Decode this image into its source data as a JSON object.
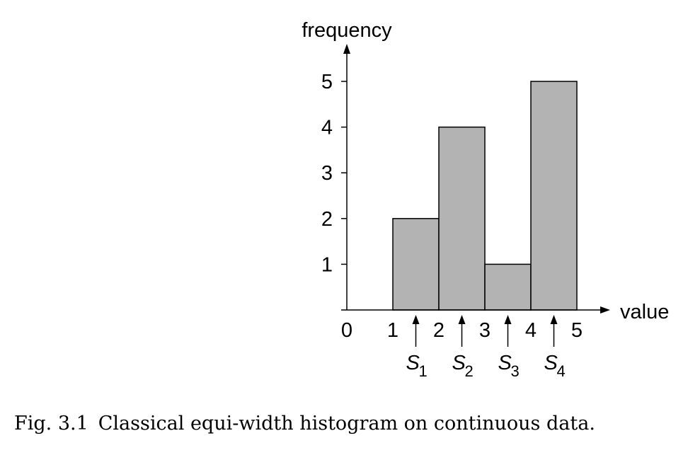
{
  "chart_data": {
    "type": "bar",
    "bins": [
      {
        "x0": 1,
        "x1": 2,
        "value": 2
      },
      {
        "x0": 2,
        "x1": 3,
        "value": 4
      },
      {
        "x0": 3,
        "x1": 4,
        "value": 1
      },
      {
        "x0": 4,
        "x1": 5,
        "value": 5
      }
    ],
    "xlabel": "value",
    "ylabel": "frequency",
    "xticks": [
      "0",
      "1",
      "2",
      "3",
      "4",
      "5"
    ],
    "yticks": [
      "1",
      "2",
      "3",
      "4",
      "5"
    ],
    "xlim": [
      0,
      5
    ],
    "ylim": [
      0,
      5
    ],
    "grid": false,
    "bar_color": "#b3b3b3",
    "markers": [
      {
        "x": 1.5,
        "letter": "S",
        "sub": "1"
      },
      {
        "x": 2.5,
        "letter": "S",
        "sub": "2"
      },
      {
        "x": 3.5,
        "letter": "S",
        "sub": "3"
      },
      {
        "x": 4.5,
        "letter": "S",
        "sub": "4"
      }
    ]
  },
  "caption": {
    "number": "Fig. 3.1",
    "text": "Classical equi-width histogram on continuous data."
  }
}
